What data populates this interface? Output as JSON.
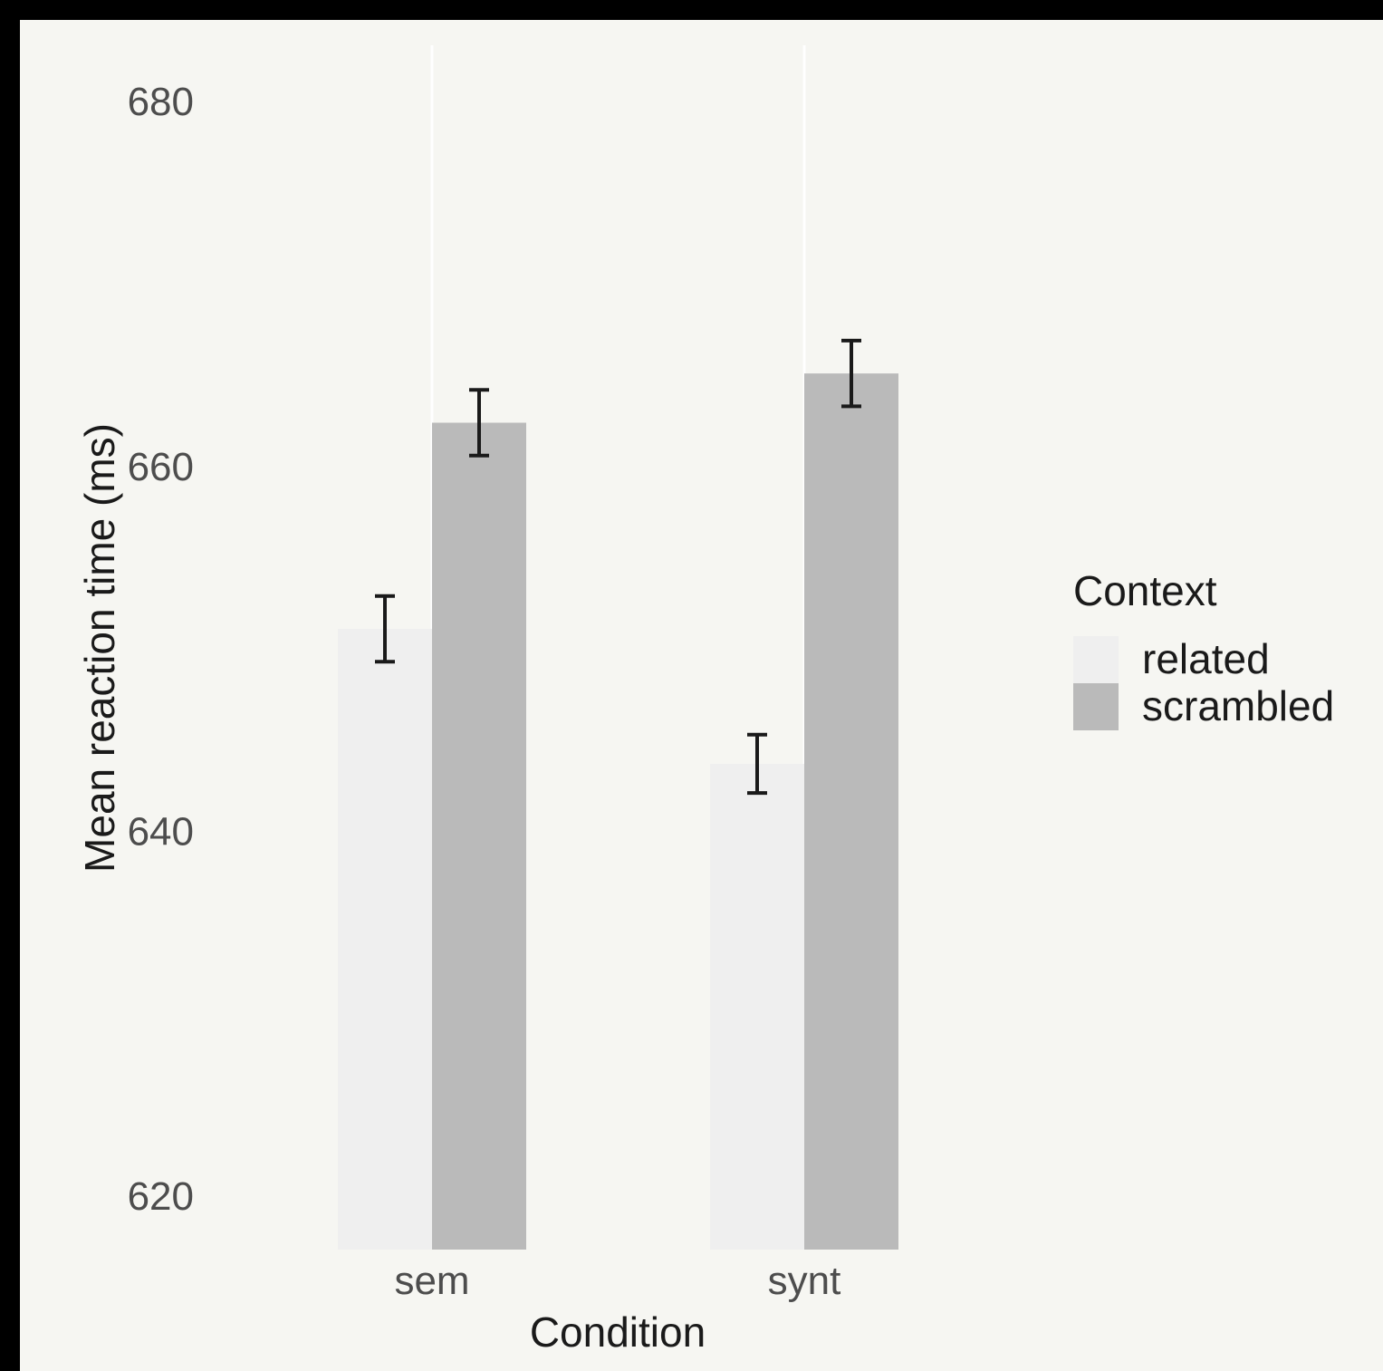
{
  "chart_data": {
    "type": "bar",
    "categories": [
      "sem",
      "synt"
    ],
    "series": [
      {
        "name": "related",
        "values": [
          651.1,
          643.7
        ],
        "errors": [
          1.8,
          1.6
        ],
        "color": "#efefef"
      },
      {
        "name": "scrambled",
        "values": [
          662.4,
          665.1
        ],
        "errors": [
          1.8,
          1.8
        ],
        "color": "#bababa"
      }
    ],
    "xlabel": "Condition",
    "ylabel": "Mean reaction time (ms)",
    "yticks": [
      620,
      640,
      660,
      680
    ],
    "ylim": [
      617,
      683
    ],
    "legend_title": "Context",
    "legend_position": "right",
    "grid": "major vertical only"
  }
}
